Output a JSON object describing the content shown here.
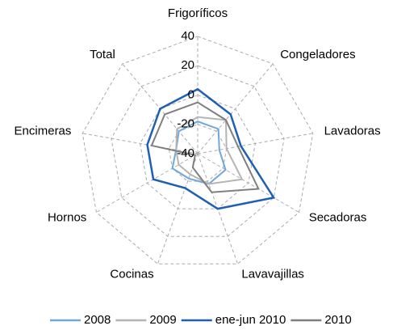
{
  "chart_data": {
    "type": "radar",
    "categories": [
      "Frigoríficos",
      "Congeladores",
      "Lavadoras",
      "Secadoras",
      "Lavavajillas",
      "Cocinas",
      "Hornos",
      "Encimeras",
      "Total"
    ],
    "ylim": [
      -40,
      40
    ],
    "yticks": [
      -40,
      -20,
      0,
      20,
      40
    ],
    "grid": true,
    "legend": "bottom",
    "series": [
      {
        "name": "2008",
        "color": "#6fa8dc",
        "values": [
          -18,
          -18,
          -25,
          -18,
          -18,
          -22,
          -20,
          -25,
          -20
        ]
      },
      {
        "name": "2009",
        "color": "#b4b4b4",
        "values": [
          -15,
          -10,
          -20,
          -5,
          -18,
          -25,
          -25,
          -25,
          -18
        ]
      },
      {
        "name": "ene-jun 2010",
        "color": "#1f5fb4",
        "values": [
          4,
          -5,
          -10,
          20,
          0,
          -15,
          -5,
          -5,
          0
        ]
      },
      {
        "name": "2010",
        "color": "#7f7f7f",
        "values": [
          -5,
          -10,
          -12,
          8,
          -12,
          -30,
          -38,
          -8,
          -5
        ]
      }
    ]
  }
}
